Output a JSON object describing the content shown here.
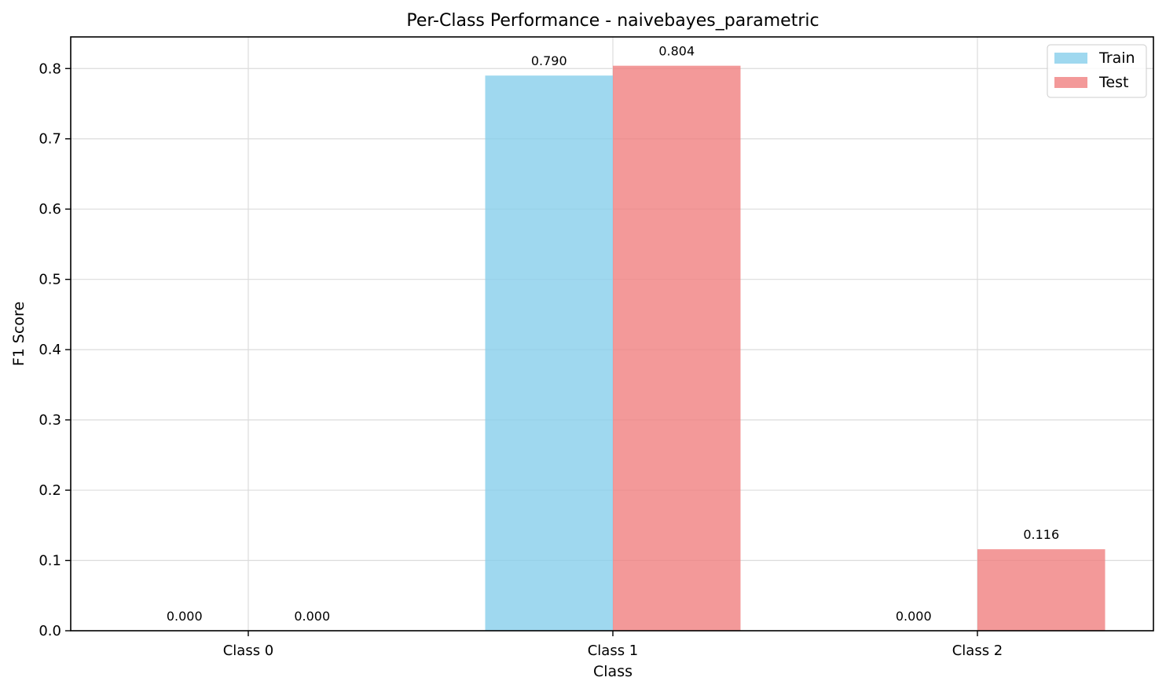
{
  "chart_data": {
    "type": "bar",
    "title": "Per-Class Performance - naivebayes_parametric",
    "xlabel": "Class",
    "ylabel": "F1 Score",
    "categories": [
      "Class 0",
      "Class 1",
      "Class 2"
    ],
    "series": [
      {
        "name": "Train",
        "color": "#87CEEB",
        "values": [
          0.0,
          0.79,
          0.0
        ],
        "labels": [
          "0.000",
          "0.790",
          "0.000"
        ]
      },
      {
        "name": "Test",
        "color": "#F08080",
        "values": [
          0.0,
          0.804,
          0.116
        ],
        "labels": [
          "0.000",
          "0.804",
          "0.116"
        ]
      }
    ],
    "ylim": [
      0,
      0.845
    ],
    "yticks": [
      0.0,
      0.1,
      0.2,
      0.3,
      0.4,
      0.5,
      0.6,
      0.7,
      0.8
    ],
    "ytick_labels": [
      "0.0",
      "0.1",
      "0.2",
      "0.3",
      "0.4",
      "0.5",
      "0.6",
      "0.7",
      "0.8"
    ],
    "grid": true,
    "legend_position": "top-right"
  }
}
